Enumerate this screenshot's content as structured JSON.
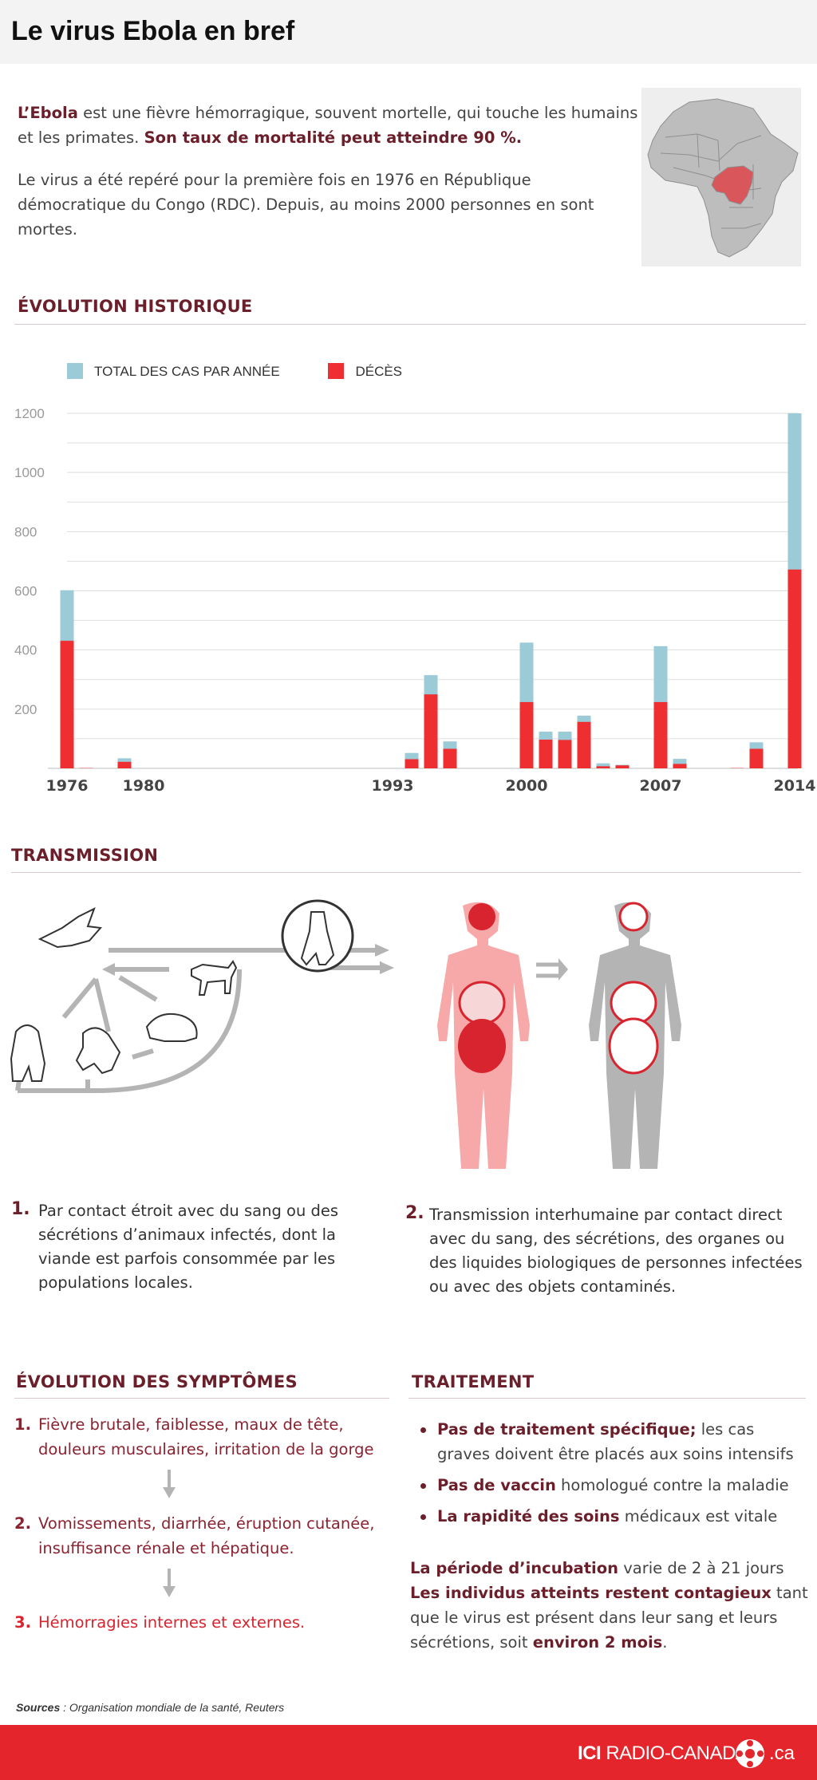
{
  "page": {
    "title": "Le virus Ebola en bref"
  },
  "intro": {
    "p1_a": "L’Ebola",
    "p1_b": " est une fièvre hémorragique, souvent mortelle, qui touche les humains et les primates. ",
    "p1_c": "Son taux de mortalité peut atteindre 90 %.",
    "p2": "Le virus a été repéré pour la première fois en 1976 en République démocratique du Congo (RDC). Depuis, au moins 2000 personnes en sont mortes."
  },
  "history": {
    "title": "ÉVOLUTION HISTORIQUE",
    "legend_cases": "TOTAL DES CAS PAR ANNÉE",
    "legend_deaths": "DÉCÈS"
  },
  "chart_data": {
    "type": "bar",
    "ylim": [
      0,
      1200
    ],
    "yticks": [
      200,
      400,
      600,
      800,
      1000,
      1200
    ],
    "x_min": 1976,
    "x_max": 2014,
    "xtick_labels": [
      "1976",
      "1980",
      "1993",
      "2000",
      "2007",
      "2014"
    ],
    "grid": true,
    "legend_placement": "top-left",
    "colors": {
      "cases": "#9ccbd8",
      "deaths": "#ee2e31"
    },
    "series": [
      {
        "name": "TOTAL DES CAS PAR ANNÉE",
        "key": "cases"
      },
      {
        "name": "DÉCÈS",
        "key": "deaths"
      }
    ],
    "points": [
      {
        "year": 1976,
        "cases": 602,
        "deaths": 431
      },
      {
        "year": 1977,
        "cases": 1,
        "deaths": 1
      },
      {
        "year": 1979,
        "cases": 34,
        "deaths": 22
      },
      {
        "year": 1994,
        "cases": 52,
        "deaths": 31
      },
      {
        "year": 1995,
        "cases": 315,
        "deaths": 250
      },
      {
        "year": 1996,
        "cases": 91,
        "deaths": 66
      },
      {
        "year": 2000,
        "cases": 425,
        "deaths": 224
      },
      {
        "year": 2001,
        "cases": 124,
        "deaths": 97
      },
      {
        "year": 2002,
        "cases": 124,
        "deaths": 96
      },
      {
        "year": 2003,
        "cases": 178,
        "deaths": 157
      },
      {
        "year": 2004,
        "cases": 17,
        "deaths": 7
      },
      {
        "year": 2005,
        "cases": 12,
        "deaths": 10
      },
      {
        "year": 2007,
        "cases": 413,
        "deaths": 224
      },
      {
        "year": 2008,
        "cases": 32,
        "deaths": 15
      },
      {
        "year": 2011,
        "cases": 1,
        "deaths": 1
      },
      {
        "year": 2012,
        "cases": 88,
        "deaths": 66
      },
      {
        "year": 2014,
        "cases": 1200,
        "deaths": 672
      }
    ]
  },
  "transmission": {
    "title": "TRANSMISSION",
    "item1_num": "1.",
    "item1_text": "Par contact étroit avec du sang ou des sécrétions d’animaux infectés, dont la viande est parfois consommée par les populations locales.",
    "item2_num": "2.",
    "item2_text": "Transmission interhumaine par contact direct avec du sang, des sécrétions, des organes ou des liquides biologiques de personnes infectées ou avec des objets contaminés."
  },
  "symptoms": {
    "title": "ÉVOLUTION DES SYMPTÔMES",
    "items": [
      {
        "num": "1.",
        "text": "Fièvre brutale, faiblesse, maux de tête, douleurs musculaires, irritation de la gorge"
      },
      {
        "num": "2.",
        "text": "Vomissements, diarrhée, éruption cutanée, insuffisance rénale et hépatique."
      },
      {
        "num": "3.",
        "text": "Hémorragies internes et externes."
      }
    ]
  },
  "treatment": {
    "title": "TRAITEMENT",
    "items": [
      {
        "bold": "Pas de traitement spécifique;",
        "rest": " les cas graves doivent être placés aux soins intensifs"
      },
      {
        "bold": "Pas de vaccin",
        "rest": " homologué contre la maladie"
      },
      {
        "bold": "La rapidité des soins",
        "rest": " médicaux est vitale"
      }
    ],
    "incub_b1": "La période d’incubation",
    "incub_t1": " varie de 2 à 21 jours ",
    "incub_b2": "Les individus atteints restent contagieux",
    "incub_t2": " tant que le virus est présent dans leur sang et leurs sécrétions, soit ",
    "incub_b3": "environ 2 mois",
    "incub_t3": "."
  },
  "sources": {
    "label": "Sources",
    "text": " : Organisation mondiale de la santé, Reuters"
  },
  "footer": {
    "brand_a": "ICI",
    "brand_b": " RADIO-CANADA",
    "domain": ".ca"
  }
}
